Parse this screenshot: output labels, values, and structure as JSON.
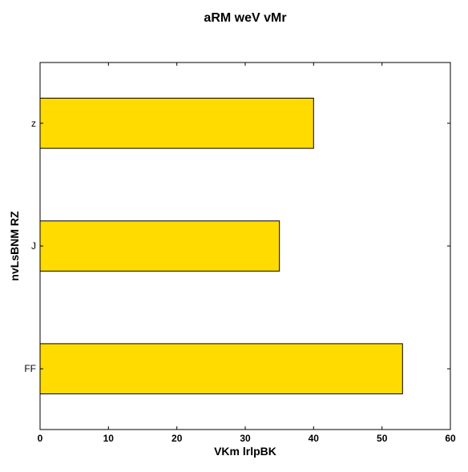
{
  "chart_data": {
    "type": "bar",
    "orientation": "horizontal",
    "title": "aRM weV vMr",
    "xlabel": "VKm  lrlpBK",
    "ylabel": "nvLsBNM RZ",
    "categories": [
      "z",
      "J",
      "FF"
    ],
    "values": [
      40,
      35,
      53
    ],
    "xlim": [
      0,
      60
    ],
    "xticks": [
      "0",
      "10",
      "20",
      "30",
      "40",
      "50",
      "60"
    ],
    "grid": false,
    "legend": "none",
    "bar_color": "#FFDB00",
    "edge_color": "#000000"
  }
}
